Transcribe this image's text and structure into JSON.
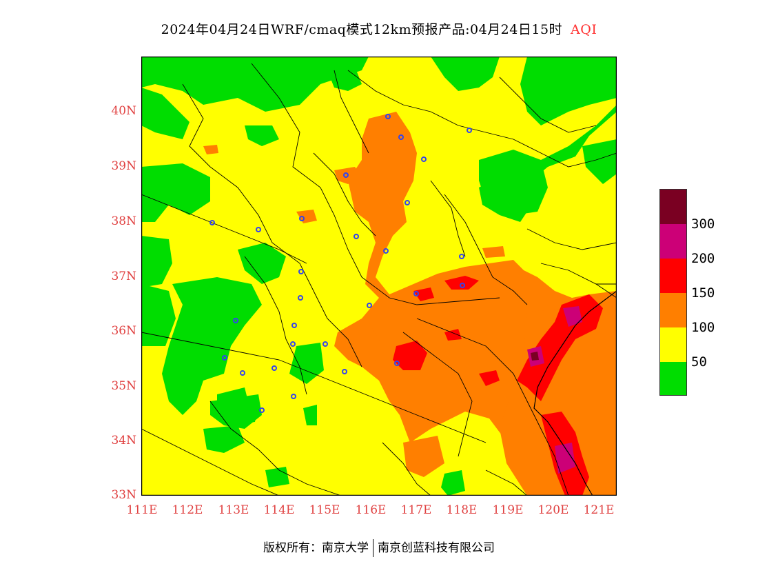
{
  "title": {
    "main": "2024年04月24日WRF/cmaq模式12km预报产品:04月24日15时",
    "variable": "AQI"
  },
  "map": {
    "lat_labels": [
      "40N",
      "39N",
      "38N",
      "37N",
      "36N",
      "35N",
      "34N",
      "33N"
    ],
    "lon_labels": [
      "111E",
      "112E",
      "113E",
      "114E",
      "115E",
      "116E",
      "117E",
      "118E",
      "119E",
      "120E",
      "121E"
    ],
    "lat_range": [
      33,
      41
    ],
    "lon_range": [
      111,
      121.4
    ]
  },
  "legend": {
    "labels": [
      "300",
      "200",
      "150",
      "100",
      "50"
    ],
    "colors": {
      "good": "#00dd00",
      "moderate": "#ffff00",
      "usg": "#ff7f00",
      "unhealthy": "#ff0000",
      "very_unhealthy": "#cc0077",
      "hazardous": "#7a0022"
    }
  },
  "footer": {
    "copyright": "版权所有：南京大学",
    "company": "南京创蓝科技有限公司"
  }
}
